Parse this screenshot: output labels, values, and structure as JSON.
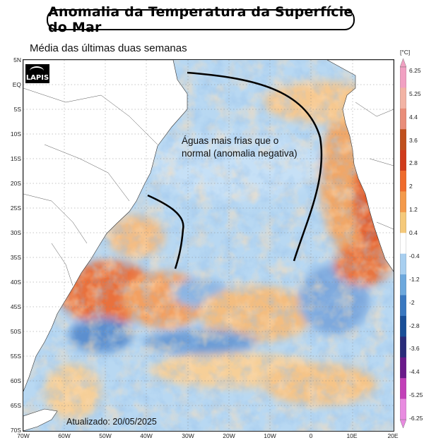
{
  "header": {
    "title": "Anomalia da Temperatura da Superfície do Mar",
    "subtitle": "Média das últimas duas semanas"
  },
  "logo": {
    "text": "LAPIS"
  },
  "annotation": {
    "line1": "Águas mais frias que o",
    "line2": "normal (anomalia negativa)"
  },
  "footer": {
    "updated": "Atualizado: 20/05/2025"
  },
  "axes": {
    "latitude": [
      "5N",
      "EQ",
      "5S",
      "10S",
      "15S",
      "20S",
      "25S",
      "30S",
      "35S",
      "40S",
      "45S",
      "50S",
      "55S",
      "60S",
      "65S",
      "70S"
    ],
    "longitude": [
      "70W",
      "60W",
      "50W",
      "40W",
      "30W",
      "20W",
      "10W",
      "0",
      "10E",
      "20E"
    ]
  },
  "colorbar": {
    "unit": "[°C]",
    "ticks": [
      "6.25",
      "5.25",
      "4.4",
      "3.6",
      "2.8",
      "2",
      "1.2",
      "0.4",
      "-0.4",
      "-1.2",
      "-2",
      "-2.8",
      "-3.6",
      "-4.4",
      "-5.25",
      "-6.25"
    ],
    "colors": [
      "#f1a0c2",
      "#f2b3a4",
      "#e98d79",
      "#c0501e",
      "#d03b1c",
      "#ef6b2c",
      "#f49a4b",
      "#f5c97a",
      "#ffffff",
      "#a8cff0",
      "#6da8dd",
      "#3a78c0",
      "#1a4f98",
      "#2a2c7a",
      "#6a1a8a",
      "#c23fb8",
      "#e88be0"
    ]
  },
  "map": {
    "land_color": "#ffffff",
    "ocean_base": "#b6d7f1",
    "gridlines": true
  }
}
